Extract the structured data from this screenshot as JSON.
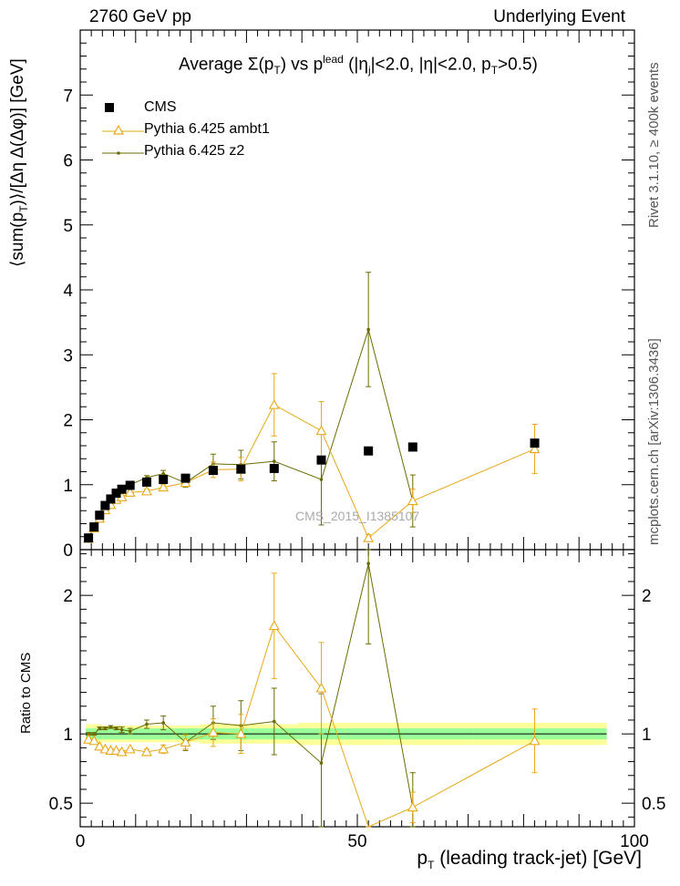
{
  "header": {
    "left": "2760 GeV pp",
    "right": "Underlying Event"
  },
  "side": {
    "rivet": "Rivet 3.1.10, ≥ 400k events",
    "mcplots": "mcplots.cern.ch [arXiv:1306.3436]"
  },
  "title": {
    "prefix": "Average Σ(p",
    "mid": ") vs p",
    "sup": "lead",
    "suffix": " (|η",
    "j": "j",
    "rest": "|<2.0, |η|<2.0, p",
    "end": ">0.5)"
  },
  "ylabel_main": "⟨sum(p",
  "ylabel_main_end": ")⟩/[Δη Δ(Δφ)] [GeV]",
  "ylabel_ratio": "Ratio to CMS",
  "xlabel": "p",
  "xlabel_end": " (leading track-jet) [GeV]",
  "sub_T": "T",
  "watermark": "CMS_2015_I1385107",
  "colors": {
    "ambt1": "#e6a817",
    "z2": "#6b6b00",
    "band_yellow": "#ffff99",
    "band_green": "#99ff99"
  },
  "chart_data": {
    "type": "scatter",
    "title": "Average Σ(pT) vs pT lead (|ηj|<2.0, |η|<2.0, pT>0.5)",
    "xlabel": "pT (leading track-jet) [GeV]",
    "ylabel": "⟨sum(pT)⟩/[Δη Δ(Δφ)] [GeV]",
    "xlim": [
      0,
      100
    ],
    "ylim": [
      0,
      8
    ],
    "ratio_ylim": [
      0.33,
      2.33
    ],
    "x_ticks": [
      "0",
      "50",
      "100"
    ],
    "y_ticks": [
      "0",
      "1",
      "2",
      "3",
      "4",
      "5",
      "6",
      "7"
    ],
    "ratio_ticks": [
      "0.5",
      "1",
      "2"
    ],
    "legend": [
      "CMS",
      "Pythia 6.425 ambt1",
      "Pythia 6.425 z2"
    ],
    "series": [
      {
        "name": "CMS",
        "x": [
          1.5,
          2.5,
          3.5,
          4.5,
          5.5,
          6.5,
          7.5,
          9,
          12,
          15,
          19,
          24,
          29,
          35,
          43.5,
          52,
          60,
          82
        ],
        "values": [
          0.18,
          0.35,
          0.53,
          0.68,
          0.78,
          0.87,
          0.93,
          0.99,
          1.04,
          1.08,
          1.1,
          1.22,
          1.24,
          1.25,
          1.38,
          1.52,
          1.58,
          1.64
        ]
      },
      {
        "name": "Pythia 6.425 ambt1",
        "x": [
          1.5,
          2.5,
          3.5,
          4.5,
          5.5,
          6.5,
          7.5,
          9,
          12,
          15,
          19,
          24,
          29,
          35,
          43.5,
          52,
          60,
          82
        ],
        "values": [
          0.17,
          0.33,
          0.48,
          0.61,
          0.69,
          0.77,
          0.81,
          0.88,
          0.9,
          0.96,
          1.03,
          1.23,
          1.24,
          2.23,
          1.83,
          0.18,
          0.75,
          1.55
        ],
        "err": [
          0.01,
          0.01,
          0.01,
          0.01,
          0.01,
          0.01,
          0.02,
          0.02,
          0.03,
          0.04,
          0.06,
          0.12,
          0.18,
          0.48,
          0.45,
          0.05,
          0.18,
          0.38
        ]
      },
      {
        "name": "Pythia 6.425 z2",
        "x": [
          1.5,
          2.5,
          3.5,
          4.5,
          5.5,
          6.5,
          7.5,
          9,
          12,
          15,
          19,
          24,
          29,
          35,
          43.5,
          52,
          60
        ],
        "values": [
          0.18,
          0.35,
          0.55,
          0.71,
          0.82,
          0.91,
          0.96,
          1.0,
          1.11,
          1.17,
          1.03,
          1.32,
          1.31,
          1.36,
          1.08,
          3.39,
          0.75
        ],
        "err": [
          0.01,
          0.01,
          0.01,
          0.01,
          0.01,
          0.01,
          0.02,
          0.02,
          0.03,
          0.05,
          0.07,
          0.15,
          0.22,
          0.3,
          0.7,
          0.88,
          0.4
        ]
      }
    ],
    "ratio": {
      "ambt1": [
        0.96,
        0.95,
        0.91,
        0.89,
        0.88,
        0.88,
        0.87,
        0.89,
        0.87,
        0.89,
        0.94,
        1.01,
        1.0,
        1.78,
        1.33,
        0.12,
        0.47,
        0.95
      ],
      "ambt1_err": [
        0.01,
        0.01,
        0.01,
        0.01,
        0.01,
        0.01,
        0.01,
        0.01,
        0.02,
        0.03,
        0.05,
        0.1,
        0.14,
        0.38,
        0.33,
        0.04,
        0.11,
        0.23
      ],
      "z2": [
        1.0,
        1.0,
        1.04,
        1.04,
        1.05,
        1.04,
        1.03,
        1.02,
        1.07,
        1.08,
        0.94,
        1.08,
        1.06,
        1.09,
        0.79,
        2.23,
        0.47
      ],
      "z2_err": [
        0.01,
        0.01,
        0.01,
        0.01,
        0.01,
        0.01,
        0.02,
        0.02,
        0.03,
        0.05,
        0.06,
        0.12,
        0.18,
        0.24,
        0.5,
        0.58,
        0.25
      ],
      "band_yellow": [
        0.07,
        0.07,
        0.07,
        0.06,
        0.06,
        0.06,
        0.06,
        0.06,
        0.06,
        0.06,
        0.06,
        0.07,
        0.07,
        0.07,
        0.08,
        0.08,
        0.08,
        0.08
      ],
      "band_green": [
        0.04,
        0.04,
        0.04,
        0.04,
        0.04,
        0.04,
        0.04,
        0.04,
        0.04,
        0.04,
        0.04,
        0.04,
        0.04,
        0.04,
        0.04,
        0.04,
        0.04,
        0.04
      ]
    }
  }
}
